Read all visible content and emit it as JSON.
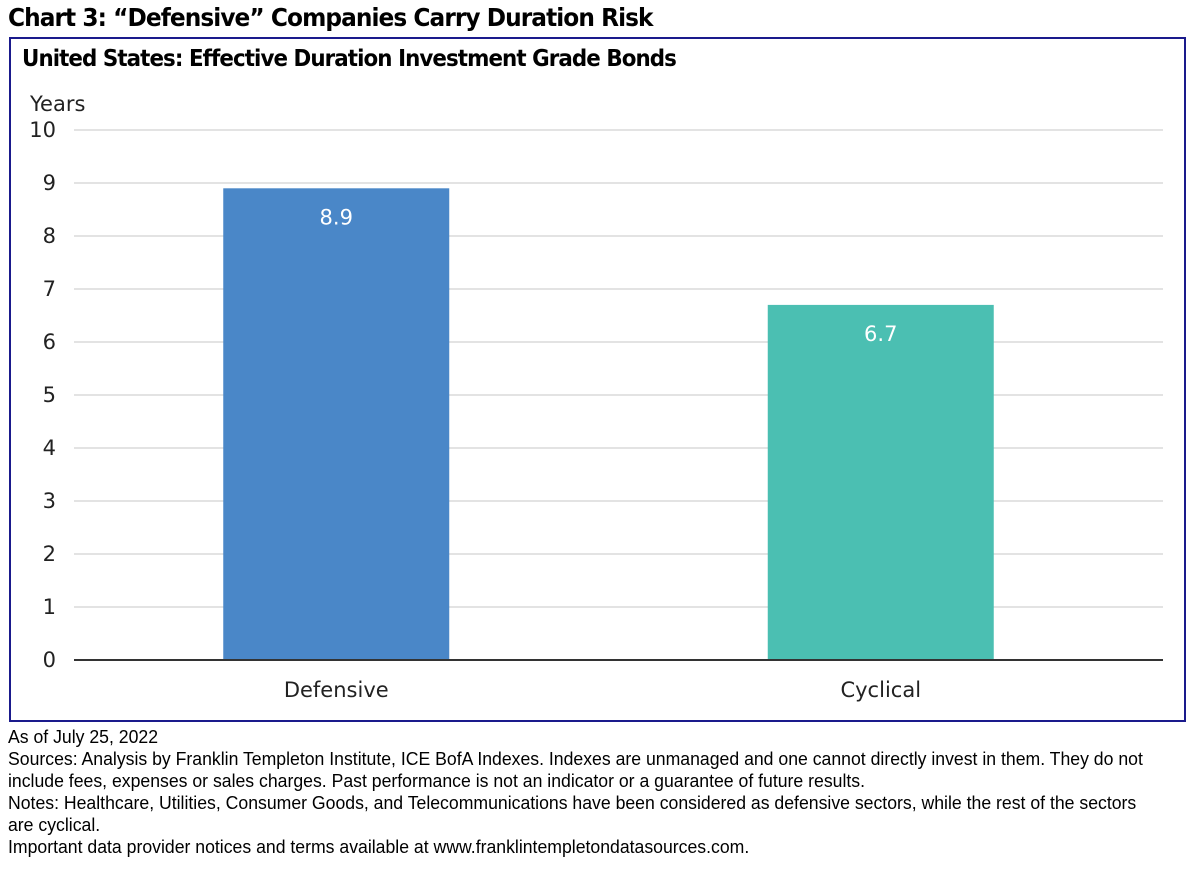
{
  "header": {
    "title": "Chart 3: “Defensive” Companies Carry Duration Risk"
  },
  "chart_data": {
    "type": "bar",
    "title": "United States: Effective Duration Investment Grade Bonds",
    "xlabel": "",
    "ylabel": "Years",
    "ylim": [
      0,
      10
    ],
    "yticks": [
      0,
      1,
      2,
      3,
      4,
      5,
      6,
      7,
      8,
      9,
      10
    ],
    "grid": true,
    "categories": [
      "Defensive",
      "Cyclical"
    ],
    "values": [
      8.9,
      6.7
    ],
    "data_labels": [
      "8.9",
      "6.7"
    ],
    "colors": [
      "#4a87c8",
      "#4bbfb2"
    ]
  },
  "footer": {
    "as_of": "As of July 25, 2022",
    "sources": "Sources: Analysis by Franklin Templeton Institute, ICE BofA Indexes. Indexes are unmanaged and one cannot directly invest in them. They do not include fees, expenses or sales charges. Past performance is not an indicator or a guarantee of future results.",
    "notes": "Notes: Healthcare, Utilities, Consumer Goods, and Telecommunications have been considered as defensive sectors, while the rest of the sectors are cyclical.",
    "provider": "Important data provider notices and terms available at www.franklintempletondatasources.com."
  }
}
